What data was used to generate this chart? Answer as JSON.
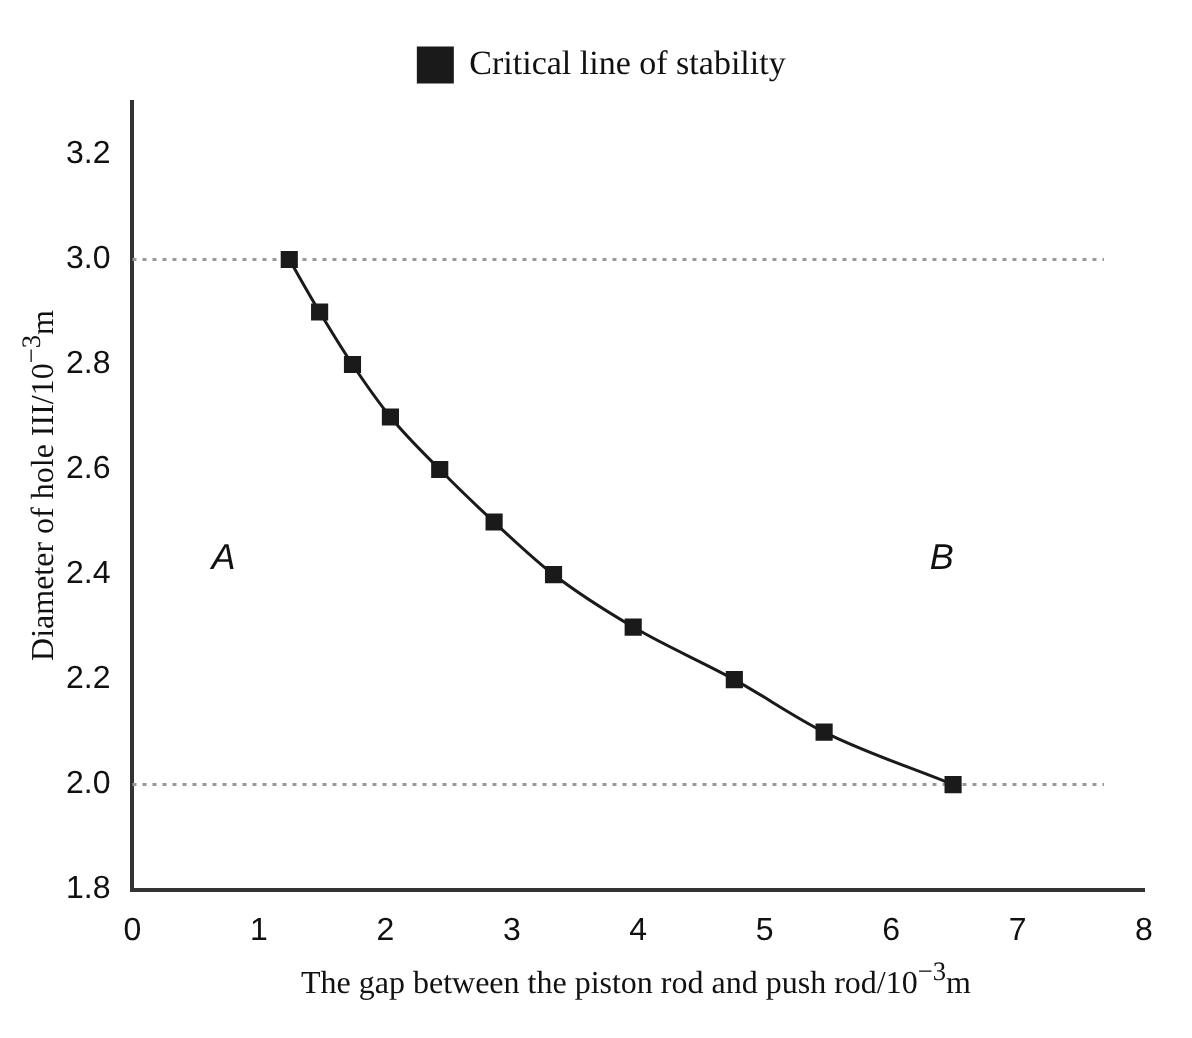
{
  "chart_data": {
    "type": "line",
    "xlabel": "The gap between the piston rod and push rod/10$^{−3}$m",
    "ylabel": "Diameter of hole III/10$^{−3}$m",
    "x": [
      1.24,
      1.48,
      1.74,
      2.04,
      2.43,
      2.86,
      3.33,
      3.96,
      4.76,
      5.47,
      6.49
    ],
    "series": [
      {
        "name": "Critical line of stability",
        "color": "#1a1a1a",
        "values": [
          3.0,
          2.9,
          2.8,
          2.7,
          2.6,
          2.5,
          2.4,
          2.3,
          2.2,
          2.1,
          2.0
        ]
      }
    ],
    "xlim": [
      0,
      8
    ],
    "xticks": [
      0,
      1,
      2,
      3,
      4,
      5,
      6,
      7,
      8
    ],
    "ylim": [
      1.8,
      3.3
    ],
    "yticks": [
      {
        "value": 1.8,
        "label": "1.8"
      },
      {
        "value": 2,
        "label": "2.0"
      },
      {
        "value": 2.2,
        "label": "2.2"
      },
      {
        "value": 2.4,
        "label": "2.4"
      },
      {
        "value": 2.6,
        "label": "2.6"
      },
      {
        "value": 2.8,
        "label": "2.8"
      },
      {
        "value": 3,
        "label": "3.0"
      },
      {
        "value": 3.2,
        "label": "3.2"
      }
    ],
    "ref_lines": [
      {
        "axis": "y",
        "value": 2.0,
        "color": "#999999",
        "line_style": "dotted"
      },
      {
        "axis": "y",
        "value": 3.0,
        "color": "#999999",
        "line_style": "dotted"
      }
    ],
    "annotations": [
      "A",
      "B"
    ],
    "legend": "top",
    "marker": "square",
    "line_style": "solid",
    "grid": false
  }
}
